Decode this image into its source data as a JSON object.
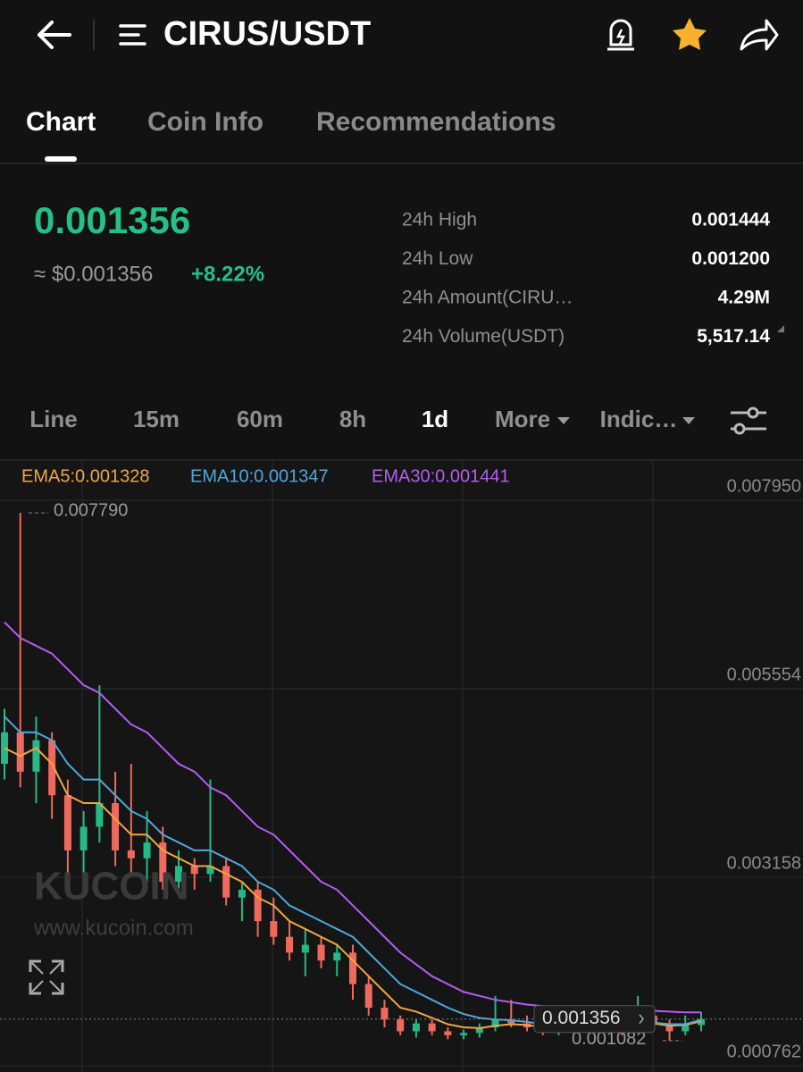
{
  "header": {
    "title": "CIRUS/USDT"
  },
  "tabs": [
    "Chart",
    "Coin Info",
    "Recommendations"
  ],
  "ticker": {
    "price": "0.001356",
    "approx": "≈ $0.001356",
    "change": "+8.22%",
    "stats": [
      [
        "24h High",
        "0.001444"
      ],
      [
        "24h Low",
        "0.001200"
      ],
      [
        "24h Amount(CIRU…",
        "4.29M"
      ],
      [
        "24h Volume(USDT)",
        "5,517.14"
      ]
    ]
  },
  "intervals": [
    "Line",
    "15m",
    "60m",
    "8h",
    "1d",
    "More",
    "Indic…"
  ],
  "watermark": {
    "brand": "KUCOIN",
    "url": "www.kucoin.com"
  },
  "chart_data": {
    "type": "candlestick",
    "open": [
      0.0046,
      0.005,
      0.0045,
      0.0049,
      0.0042,
      0.0035,
      0.0038,
      0.0041,
      0.0035,
      0.0034,
      0.0036,
      0.0031,
      0.0033,
      0.0032,
      0.0033,
      0.0029,
      0.003,
      0.0026,
      0.0024,
      0.0022,
      0.0023,
      0.0021,
      0.0022,
      0.0018,
      0.0015,
      0.00135,
      0.0012,
      0.0013,
      0.0012,
      0.00115,
      0.00118,
      0.00125,
      0.00135,
      0.0013,
      0.00125,
      0.0012,
      0.00128,
      0.00122,
      0.0013,
      0.00125,
      0.00122,
      0.0014,
      0.0013,
      0.0012,
      0.00128
    ],
    "high": [
      0.0053,
      0.00779,
      0.0052,
      0.005,
      0.0044,
      0.004,
      0.0056,
      0.0045,
      0.0046,
      0.004,
      0.0038,
      0.0035,
      0.0034,
      0.0044,
      0.0034,
      0.0031,
      0.0031,
      0.0029,
      0.0026,
      0.0025,
      0.0024,
      0.0023,
      0.0023,
      0.0019,
      0.0016,
      0.0014,
      0.00135,
      0.00135,
      0.00125,
      0.00122,
      0.0013,
      0.00165,
      0.0016,
      0.0014,
      0.0013,
      0.0013,
      0.00135,
      0.0015,
      0.00145,
      0.0013,
      0.00165,
      0.0015,
      0.00135,
      0.0014,
      0.001444
    ],
    "low": [
      0.0044,
      0.0043,
      0.0041,
      0.0039,
      0.0032,
      0.0029,
      0.0036,
      0.0033,
      0.0032,
      0.0031,
      0.003,
      0.003,
      0.003,
      0.0031,
      0.0028,
      0.0026,
      0.0024,
      0.0023,
      0.0021,
      0.0019,
      0.002,
      0.0019,
      0.0016,
      0.0014,
      0.00125,
      0.00115,
      0.00112,
      0.00115,
      0.0011,
      0.0011,
      0.00112,
      0.0012,
      0.00125,
      0.0012,
      0.00115,
      0.00115,
      0.0012,
      0.00118,
      0.0012,
      0.00115,
      0.0012,
      0.00125,
      0.001082,
      0.00115,
      0.0012
    ],
    "close": [
      0.005,
      0.0045,
      0.0049,
      0.0042,
      0.0035,
      0.0038,
      0.0041,
      0.0035,
      0.0034,
      0.0036,
      0.0031,
      0.0033,
      0.0032,
      0.0033,
      0.0029,
      0.003,
      0.0026,
      0.0024,
      0.0022,
      0.0023,
      0.0021,
      0.0022,
      0.0018,
      0.0015,
      0.00135,
      0.0012,
      0.0013,
      0.0012,
      0.00115,
      0.00118,
      0.00125,
      0.00135,
      0.0013,
      0.00125,
      0.0012,
      0.00128,
      0.00122,
      0.0013,
      0.00125,
      0.00122,
      0.0014,
      0.0013,
      0.0012,
      0.00128,
      0.001356
    ],
    "up_color": "#25b985",
    "down_color": "#ee6a5e",
    "series": [
      {
        "name": "EMA5:0.001328",
        "color": "#f2a541",
        "values": [
          0.0048,
          0.0047,
          0.0048,
          0.0046,
          0.0042,
          0.0041,
          0.0041,
          0.0039,
          0.0037,
          0.0037,
          0.0035,
          0.0034,
          0.0033,
          0.0033,
          0.0032,
          0.0031,
          0.0029,
          0.0028,
          0.0026,
          0.0025,
          0.0024,
          0.0023,
          0.0021,
          0.0019,
          0.0017,
          0.0015,
          0.00145,
          0.00137,
          0.00129,
          0.00125,
          0.00124,
          0.00127,
          0.00129,
          0.00128,
          0.00125,
          0.00126,
          0.00125,
          0.00127,
          0.00126,
          0.00125,
          0.0013,
          0.0013,
          0.00127,
          0.00128,
          0.001328
        ]
      },
      {
        "name": "EMA10:0.001347",
        "color": "#4ea8de",
        "values": [
          0.0052,
          0.005,
          0.005,
          0.0049,
          0.0046,
          0.0044,
          0.0044,
          0.0042,
          0.004,
          0.0039,
          0.0037,
          0.0036,
          0.0035,
          0.0035,
          0.0034,
          0.0033,
          0.0031,
          0.003,
          0.0028,
          0.0027,
          0.0026,
          0.0025,
          0.0024,
          0.0022,
          0.002,
          0.0018,
          0.0017,
          0.0016,
          0.0015,
          0.00142,
          0.00137,
          0.00135,
          0.00134,
          0.00132,
          0.00129,
          0.00129,
          0.00128,
          0.00128,
          0.00128,
          0.00127,
          0.0013,
          0.00131,
          0.00129,
          0.00129,
          0.001347
        ]
      },
      {
        "name": "EMA30:0.001441",
        "color": "#b45ef0",
        "values": [
          0.0064,
          0.0062,
          0.0061,
          0.006,
          0.0058,
          0.0056,
          0.0055,
          0.0053,
          0.0051,
          0.005,
          0.0048,
          0.0046,
          0.0045,
          0.0043,
          0.0042,
          0.004,
          0.0038,
          0.0037,
          0.0035,
          0.0033,
          0.0031,
          0.003,
          0.0028,
          0.0026,
          0.0024,
          0.0022,
          0.00205,
          0.0019,
          0.0018,
          0.0017,
          0.00165,
          0.0016,
          0.00157,
          0.00154,
          0.00152,
          0.0015,
          0.00149,
          0.00148,
          0.00147,
          0.00146,
          0.00146,
          0.00146,
          0.00145,
          0.00144,
          0.001441
        ]
      }
    ],
    "ylim": [
      0.000762,
      0.00795
    ],
    "yticks": [
      {
        "value": 0.00795,
        "label": "0.007950"
      },
      {
        "value": 0.005554,
        "label": "0.005554"
      },
      {
        "value": 0.003158,
        "label": "0.003158"
      },
      {
        "value": 0.000762,
        "label": "0.000762"
      }
    ],
    "max_label": {
      "value": 0.00779,
      "label": "0.007790"
    },
    "min_label": {
      "value": 0.001082,
      "label": "0.001082"
    },
    "last_price": 0.001356,
    "grid": true
  }
}
